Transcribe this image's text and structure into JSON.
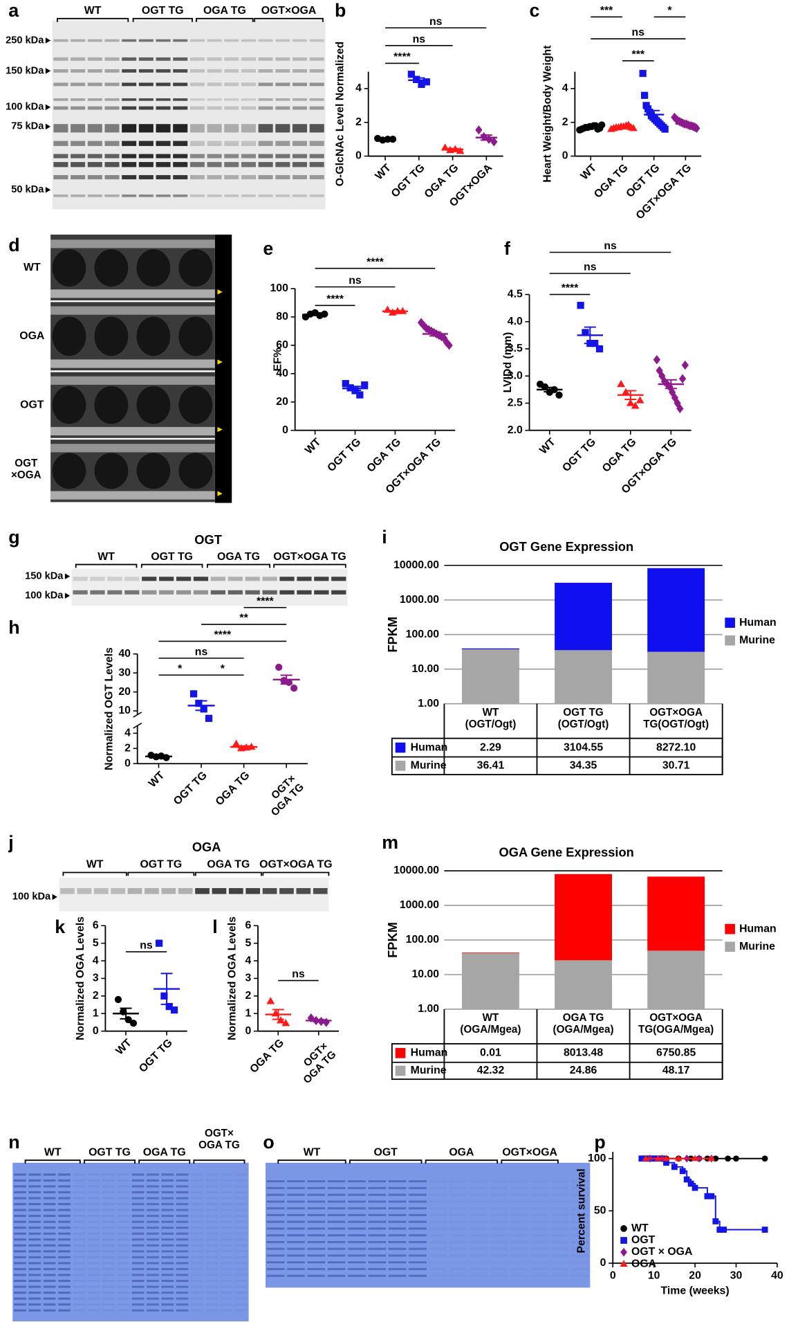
{
  "blots": [
    {
      "label": "a",
      "lanes": [
        "WT",
        "OGT TG",
        "OGA TG",
        "OGT×OGA"
      ],
      "markers": [
        "250 kDa",
        "150 kDa",
        "100 kDa",
        "75 kDa",
        "50 kDa"
      ]
    },
    {
      "label": "d",
      "rows": [
        "WT",
        "OGA",
        "OGT",
        "OGT\n×OGA"
      ]
    },
    {
      "label": "g",
      "title": "OGT",
      "lanes": [
        "WT",
        "OGT TG",
        "OGA TG",
        "OGT×OGA TG"
      ],
      "markers": [
        "150 kDa",
        "100 kDa"
      ]
    },
    {
      "label": "j",
      "title": "OGA",
      "lanes": [
        "WT",
        "OGT TG",
        "OGA TG",
        "OGT×OGA TG"
      ],
      "markers": [
        "100 kDa"
      ]
    },
    {
      "label": "n",
      "lanes": [
        "WT",
        "OGT TG",
        "OGA TG",
        "OGT×\nOGA TG"
      ]
    },
    {
      "label": "o",
      "lanes": [
        "WT",
        "OGT",
        "OGA",
        "OGT×OGA"
      ]
    }
  ],
  "chart_data": [
    {
      "label": "b",
      "type": "dotplot",
      "ylabel": "O-GlcNAc Level Normalized",
      "ylim": [
        0,
        5
      ],
      "yticks": [
        0,
        2,
        4
      ],
      "groups": [
        {
          "name": "WT",
          "color": "#000000",
          "marker": "circle",
          "values": [
            1.05,
            0.95,
            1.0,
            1.0
          ],
          "mean": 1.0,
          "sem": 0.03
        },
        {
          "name": "OGT TG",
          "color": "#1414e6",
          "marker": "square",
          "values": [
            4.85,
            4.55,
            4.25,
            4.4
          ],
          "mean": 4.5,
          "sem": 0.13
        },
        {
          "name": "OGA TG",
          "color": "#ff1a1a",
          "marker": "triangle",
          "values": [
            0.5,
            0.35,
            0.4,
            0.3
          ],
          "mean": 0.4,
          "sem": 0.05
        },
        {
          "name": "OGT×OGA",
          "color": "#8c1a8c",
          "marker": "diamond",
          "values": [
            1.55,
            1.15,
            1.0,
            0.85
          ],
          "mean": 1.1,
          "sem": 0.15
        }
      ],
      "annotations": [
        {
          "text": "****",
          "from": 0,
          "to": 1
        },
        {
          "text": "ns",
          "from": 0,
          "to": 2
        },
        {
          "text": "ns",
          "from": 0,
          "to": 3
        }
      ]
    },
    {
      "label": "c",
      "type": "dotplot",
      "ylabel": "Heart Weight/Body Weight",
      "ylim": [
        0,
        5
      ],
      "yticks": [
        0,
        2,
        4
      ],
      "groups": [
        {
          "name": "WT",
          "color": "#000000",
          "marker": "circle",
          "values": [
            1.55,
            1.6,
            1.65,
            1.7,
            1.7,
            1.75,
            1.75,
            1.8,
            1.8,
            1.6,
            1.65,
            1.85
          ],
          "mean": 1.7,
          "sem": 0.03
        },
        {
          "name": "OGA TG",
          "color": "#ff1a1a",
          "marker": "triangle",
          "values": [
            1.6,
            1.65,
            1.7,
            1.7,
            1.75,
            1.75,
            1.8,
            1.85,
            1.7,
            1.65
          ],
          "mean": 1.72,
          "sem": 0.03
        },
        {
          "name": "OGT TG",
          "color": "#1414e6",
          "marker": "square",
          "values": [
            4.9,
            3.6,
            3.0,
            2.8,
            2.6,
            2.4,
            2.3,
            2.2,
            2.1,
            2.0,
            1.9,
            1.8,
            1.7,
            1.6
          ],
          "mean": 2.46,
          "sem": 0.24
        },
        {
          "name": "OGT×OGA TG",
          "color": "#8c1a8c",
          "marker": "diamond",
          "values": [
            2.3,
            2.2,
            2.1,
            2.05,
            2.0,
            1.95,
            1.9,
            1.9,
            1.85,
            1.8,
            1.8,
            1.75,
            1.7,
            1.65
          ],
          "mean": 1.92,
          "sem": 0.05
        }
      ],
      "annotations": [
        {
          "text": "***",
          "from": 1,
          "to": 2
        },
        {
          "text": "ns",
          "from": 0,
          "to": 3
        },
        {
          "text": "***",
          "from": 0,
          "to": 1
        },
        {
          "text": "*",
          "from": 2,
          "to": 3
        }
      ]
    },
    {
      "label": "e",
      "type": "dotplot",
      "ylabel": "EF%",
      "ylim": [
        0,
        100
      ],
      "yticks": [
        0,
        20,
        40,
        60,
        80,
        100
      ],
      "groups": [
        {
          "name": "WT",
          "color": "#000000",
          "marker": "circle",
          "values": [
            80,
            82,
            83,
            81,
            82
          ],
          "mean": 81.6,
          "sem": 0.5
        },
        {
          "name": "OGT TG",
          "color": "#1414e6",
          "marker": "square",
          "values": [
            33,
            30,
            28,
            25,
            32
          ],
          "mean": 29.6,
          "sem": 1.4
        },
        {
          "name": "OGA TG",
          "color": "#ff1a1a",
          "marker": "triangle",
          "values": [
            85,
            83,
            84,
            84
          ],
          "mean": 84,
          "sem": 0.4
        },
        {
          "name": "OGT×OGA TG",
          "color": "#8c1a8c",
          "marker": "diamond",
          "values": [
            76,
            74,
            72,
            71,
            70,
            69,
            68,
            67,
            66,
            65,
            62,
            60
          ],
          "mean": 68,
          "sem": 1.4
        }
      ],
      "annotations": [
        {
          "text": "****",
          "from": 0,
          "to": 1
        },
        {
          "text": "ns",
          "from": 0,
          "to": 2
        },
        {
          "text": "****",
          "from": 0,
          "to": 3
        }
      ]
    },
    {
      "label": "f",
      "type": "dotplot",
      "ylabel": "LVIDd (mm)",
      "ylim": [
        2.0,
        4.5
      ],
      "yticks": [
        {
          "value": 2.0,
          "label": "2.0"
        },
        2.5,
        {
          "value": 3.0,
          "label": "3.0"
        },
        3.5,
        {
          "value": 4.0,
          "label": "4.0"
        },
        4.5
      ],
      "groups": [
        {
          "name": "WT",
          "color": "#000000",
          "marker": "circle",
          "values": [
            2.85,
            2.8,
            2.7,
            2.75,
            2.65
          ],
          "mean": 2.75,
          "sem": 0.04
        },
        {
          "name": "OGT TG",
          "color": "#1414e6",
          "marker": "square",
          "values": [
            4.3,
            3.8,
            3.6,
            3.6,
            3.5
          ],
          "mean": 3.75,
          "sem": 0.15
        },
        {
          "name": "OGA TG",
          "color": "#ff1a1a",
          "marker": "triangle",
          "values": [
            2.85,
            2.7,
            2.5,
            2.45,
            2.55
          ],
          "mean": 2.65,
          "sem": 0.08
        },
        {
          "name": "OGT×OGA TG",
          "color": "#8c1a8c",
          "marker": "diamond",
          "values": [
            3.3,
            3.1,
            3.0,
            2.9,
            2.85,
            2.8,
            2.7,
            2.6,
            2.5,
            2.4,
            2.95,
            3.2
          ],
          "mean": 2.85,
          "sem": 0.08
        }
      ],
      "annotations": [
        {
          "text": "****",
          "from": 0,
          "to": 1
        },
        {
          "text": "ns",
          "from": 0,
          "to": 2
        },
        {
          "text": "ns",
          "from": 0,
          "to": 3
        }
      ]
    },
    {
      "label": "h",
      "type": "dotplot",
      "ylabel": "Normalized OGT Levels",
      "ysegments": [
        {
          "ylim": [
            0,
            5
          ],
          "yticks": [
            0,
            2,
            4
          ]
        },
        {
          "ylim": [
            8,
            40
          ],
          "yticks": [
            10,
            20,
            30,
            40
          ]
        }
      ],
      "groups": [
        {
          "name": "WT",
          "color": "#000000",
          "marker": "circle",
          "values": [
            1.1,
            0.9,
            1.0,
            0.8
          ],
          "mean": 0.95,
          "sem": 0.05
        },
        {
          "name": "OGT TG",
          "color": "#1414e6",
          "marker": "square",
          "values": [
            19,
            14,
            11,
            7
          ],
          "mean": 12.8,
          "sem": 2.5
        },
        {
          "name": "OGA TG",
          "color": "#ff1a1a",
          "marker": "triangle",
          "values": [
            2.6,
            2.0,
            2.1,
            2.2
          ],
          "mean": 2.2,
          "sem": 0.12
        },
        {
          "name": "OGT×\nOGA TG",
          "color": "#8c1a8c",
          "marker": "circle",
          "values": [
            33,
            26,
            25,
            22
          ],
          "mean": 26.5,
          "sem": 2.3
        }
      ],
      "annotations": [
        {
          "text": "*",
          "from": 0,
          "to": 1
        },
        {
          "text": "*",
          "from": 1,
          "to": 2
        },
        {
          "text": "ns",
          "from": 0,
          "to": 2
        },
        {
          "text": "****",
          "from": 0,
          "to": 3
        },
        {
          "text": "**",
          "from": 1,
          "to": 3
        },
        {
          "text": "****",
          "from": 2,
          "to": 3
        }
      ]
    },
    {
      "label": "k",
      "type": "dotplot",
      "ylabel": "Normalized OGA Levels",
      "ylim": [
        0,
        6
      ],
      "yticks": [
        0,
        1,
        2,
        3,
        4,
        5,
        6
      ],
      "groups": [
        {
          "name": "WT",
          "color": "#000000",
          "marker": "circle",
          "values": [
            1.8,
            1.1,
            0.65,
            0.45
          ],
          "mean": 1.0,
          "sem": 0.3
        },
        {
          "name": "OGT TG",
          "color": "#1414e6",
          "marker": "square",
          "values": [
            5.0,
            2.0,
            1.4,
            1.2
          ],
          "mean": 2.4,
          "sem": 0.88
        }
      ],
      "annotations": [
        {
          "text": "ns",
          "from": 0,
          "to": 1
        }
      ]
    },
    {
      "label": "l",
      "type": "dotplot",
      "ylabel": "Normalized OGA Levels",
      "ylim": [
        0,
        6
      ],
      "yticks": [
        0,
        1,
        2,
        3,
        4,
        5,
        6
      ],
      "groups": [
        {
          "name": "OGA TG",
          "color": "#ff1a1a",
          "marker": "triangle",
          "values": [
            1.7,
            1.0,
            0.6,
            0.45
          ],
          "mean": 0.95,
          "sem": 0.28
        },
        {
          "name": "OGT×\nOGA TG",
          "color": "#8c1a8c",
          "marker": "diamond",
          "values": [
            0.75,
            0.6,
            0.55,
            0.5
          ],
          "mean": 0.6,
          "sem": 0.06
        }
      ],
      "annotations": [
        {
          "text": "ns",
          "from": 0,
          "to": 1
        }
      ]
    },
    {
      "label": "i",
      "type": "stacked-bar",
      "title": "OGT Gene Expression",
      "ylabel": "FPKM",
      "log_scale": true,
      "grid": true,
      "ylim": [
        1,
        10000
      ],
      "yticks": [
        {
          "value": 1,
          "label": "1.00"
        },
        {
          "value": 10,
          "label": "10.00"
        },
        {
          "value": 100,
          "label": "100.00"
        },
        {
          "value": 1000,
          "label": "1000.00"
        },
        {
          "value": 10000,
          "label": "10000.00"
        }
      ],
      "categories": [
        "WT\n(OGT/Ogt)",
        "OGT TG\n(OGT/Ogt)",
        "OGT×OGA\nTG(OGT/Ogt)"
      ],
      "series": [
        {
          "name": "Human",
          "color": "#0f0ff0",
          "values": [
            2.29,
            3104.55,
            8272.1
          ],
          "value_labels": [
            "2.29",
            "3104.55",
            "8272.10"
          ]
        },
        {
          "name": "Murine",
          "color": "#a6a6a6",
          "values": [
            36.41,
            34.35,
            30.71
          ],
          "value_labels": [
            "36.41",
            "34.35",
            "30.71"
          ]
        }
      ]
    },
    {
      "label": "m",
      "type": "stacked-bar",
      "title": "OGA Gene Expression",
      "ylabel": "FPKM",
      "log_scale": true,
      "grid": true,
      "ylim": [
        1,
        10000
      ],
      "yticks": [
        {
          "value": 1,
          "label": "1.00"
        },
        {
          "value": 10,
          "label": "10.00"
        },
        {
          "value": 100,
          "label": "100.00"
        },
        {
          "value": 1000,
          "label": "1000.00"
        },
        {
          "value": 10000,
          "label": "10000.00"
        }
      ],
      "categories": [
        "WT\n(OGA/Mgea)",
        "OGA TG\n(OGA/Mgea)",
        "OGT×OGA\nTG(OGA/Mgea)"
      ],
      "series": [
        {
          "name": "Human",
          "color": "#ff0000",
          "values": [
            0.01,
            8013.48,
            6750.85
          ],
          "value_labels": [
            "0.01",
            "8013.48",
            "6750.85"
          ]
        },
        {
          "name": "Murine",
          "color": "#a6a6a6",
          "values": [
            42.32,
            24.86,
            48.17
          ],
          "value_labels": [
            "42.32",
            "24.86",
            "48.17"
          ]
        }
      ]
    },
    {
      "label": "p",
      "type": "survival",
      "xlabel": "Time (weeks)",
      "ylabel": "Percent survival",
      "xlim": [
        0,
        40
      ],
      "xticks": [
        0,
        10,
        20,
        30,
        40
      ],
      "ylim": [
        0,
        100
      ],
      "yticks": [
        0,
        50,
        100
      ],
      "legend": "lower left",
      "series": [
        {
          "name": "WT",
          "color": "#000000",
          "marker": "circle",
          "x": [
            8,
            10,
            13,
            16,
            19,
            21,
            23,
            25,
            28,
            30,
            37
          ],
          "values": [
            100,
            100,
            100,
            100,
            100,
            100,
            100,
            100,
            100,
            100,
            100
          ]
        },
        {
          "name": "OGT",
          "color": "#1414e6",
          "marker": "square",
          "x": [
            7,
            8,
            9,
            10,
            11,
            12,
            13,
            15,
            17,
            18,
            19,
            20,
            23,
            24,
            25,
            26,
            27,
            37
          ],
          "values": [
            100,
            100,
            100,
            100,
            100,
            100,
            96,
            92,
            88,
            80,
            76,
            72,
            64,
            64,
            40,
            32,
            32,
            32
          ]
        },
        {
          "name": "OGT × OGA",
          "color": "#8c1a8c",
          "marker": "diamond",
          "x": [
            9,
            12,
            18,
            21,
            24
          ],
          "values": [
            100,
            100,
            100,
            100,
            100
          ]
        },
        {
          "name": "OGA",
          "color": "#ff1a1a",
          "marker": "triangle",
          "x": [
            8,
            11,
            13,
            16,
            20,
            24
          ],
          "values": [
            100,
            100,
            100,
            100,
            100,
            100
          ]
        }
      ]
    }
  ]
}
